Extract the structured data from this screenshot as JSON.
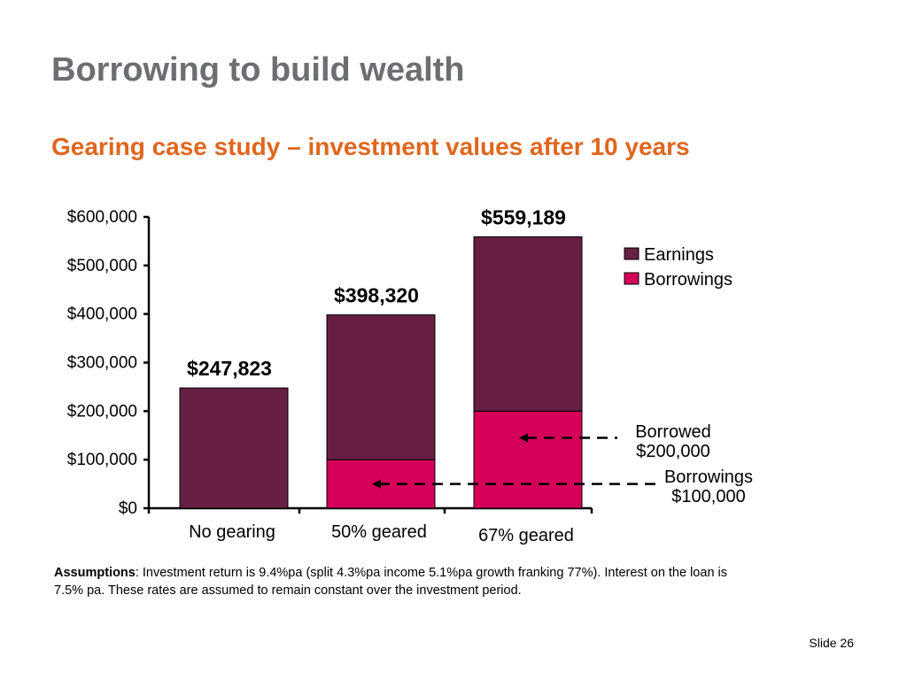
{
  "slide": {
    "title": "Borrowing to build wealth",
    "subtitle": "Gearing case study – investment values after 10 years",
    "assumptions_label": "Assumptions",
    "assumptions_text": ": Investment return is 9.4%pa (split 4.3%pa income 5.1%pa growth franking 77%). Interest on the loan is 7.5% pa. These rates are assumed to remain constant over the investment period.",
    "slide_number": "Slide 26"
  },
  "chart_data": {
    "type": "bar",
    "stacked": true,
    "title": "",
    "xlabel": "",
    "ylabel": "",
    "ylim": [
      0,
      600000
    ],
    "yticks": [
      0,
      100000,
      200000,
      300000,
      400000,
      500000,
      600000
    ],
    "ytick_labels": [
      "$0",
      "$100,000",
      "$200,000",
      "$300,000",
      "$400,000",
      "$500,000",
      "$600,000"
    ],
    "categories": [
      "No gearing",
      "50% geared",
      "67% geared"
    ],
    "series": [
      {
        "name": "Borrowings",
        "color": "#d4005a",
        "values": [
          0,
          100000,
          200000
        ]
      },
      {
        "name": "Earnings",
        "color": "#661f42",
        "values": [
          247823,
          298320,
          359189
        ]
      }
    ],
    "total_labels": [
      "$247,823",
      "$398,320",
      "$559,189"
    ],
    "legend": {
      "position": "top-right",
      "entries": [
        "Earnings",
        "Borrowings"
      ]
    },
    "annotations": [
      {
        "line1": "Borrowed",
        "line2": "$200,000",
        "category": "67% geared",
        "value": 145000
      },
      {
        "line1": "Borrowings",
        "line2": "$100,000",
        "category": "50% geared",
        "value": 50000
      }
    ],
    "grid": false
  }
}
